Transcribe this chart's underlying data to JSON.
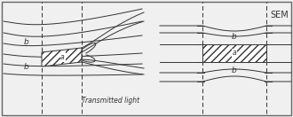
{
  "bg_color": "#f0f0f0",
  "line_color": "#333333",
  "label_a": "a",
  "label_b": "b",
  "text_transmitted": "Transmitted light",
  "text_sem": "SEM",
  "fig_width": 3.3,
  "fig_height": 1.32,
  "dpi": 100,
  "border_lw": 1.0,
  "line_lw": 0.7
}
